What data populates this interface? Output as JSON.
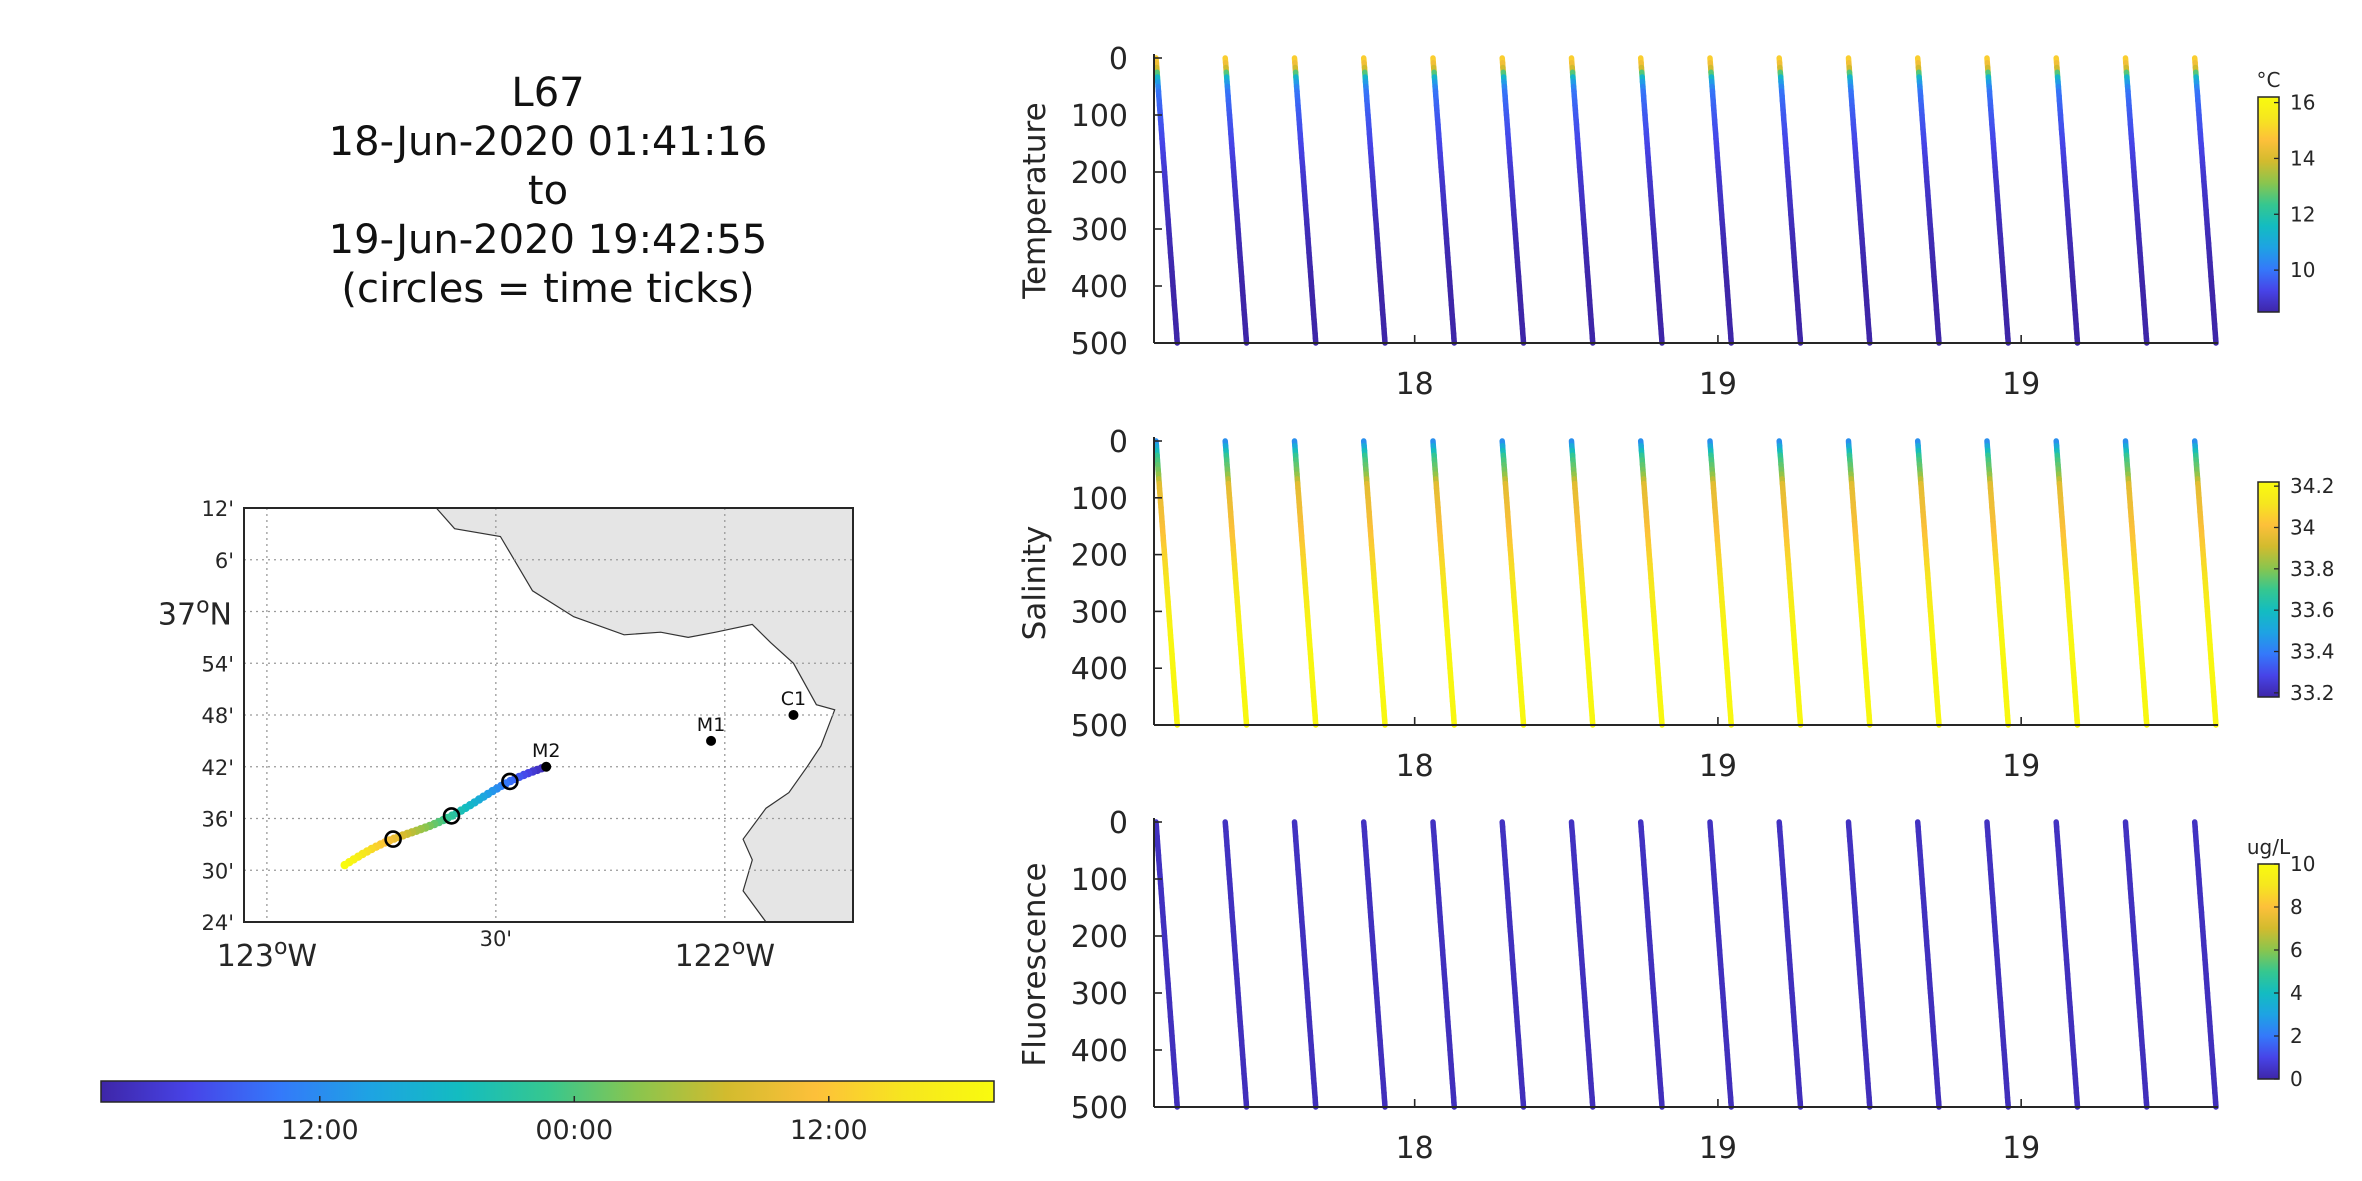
{
  "title": {
    "line1": "L67",
    "line2": "18-Jun-2020 01:41:16",
    "line3": "to",
    "line4": "19-Jun-2020 19:42:55",
    "line5": "(circles = time ticks)"
  },
  "colormap": [
    "#3e26a8",
    "#4744e8",
    "#3479fa",
    "#1ea3e3",
    "#13bcc1",
    "#36c78f",
    "#8ac54e",
    "#d2bb2e",
    "#fdc03a",
    "#f6e61f",
    "#f9fb0e"
  ],
  "time_colorbar": {
    "tick_labels": [
      "12:00",
      "00:00",
      "12:00"
    ],
    "tick_positions": [
      0.245,
      0.53,
      0.815
    ]
  },
  "map": {
    "lon_range": [
      -123.05,
      -121.72
    ],
    "lat_range": [
      36.4,
      37.2
    ],
    "lat_ticks": [
      {
        "v": 37.2,
        "label": "12'"
      },
      {
        "v": 37.1,
        "label": "6'"
      },
      {
        "v": 37.0,
        "label": "37°N"
      },
      {
        "v": 36.9,
        "label": "54'"
      },
      {
        "v": 36.8,
        "label": "48'"
      },
      {
        "v": 36.7,
        "label": "42'"
      },
      {
        "v": 36.6,
        "label": "36'"
      },
      {
        "v": 36.5,
        "label": "30'"
      },
      {
        "v": 36.4,
        "label": "24'"
      }
    ],
    "lon_ticks": [
      {
        "v": -123.0,
        "label": "123°W"
      },
      {
        "v": -122.5,
        "label": "30'"
      },
      {
        "v": -122.0,
        "label": "122°W"
      }
    ],
    "land_color": "#e5e5e5",
    "coast": [
      [
        -122.63,
        37.2
      ],
      [
        -122.59,
        37.16
      ],
      [
        -122.49,
        37.145
      ],
      [
        -122.42,
        37.04
      ],
      [
        -122.33,
        36.99
      ],
      [
        -122.22,
        36.955
      ],
      [
        -122.14,
        36.96
      ],
      [
        -122.08,
        36.95
      ],
      [
        -122.02,
        36.96
      ],
      [
        -121.94,
        36.975
      ],
      [
        -121.9,
        36.94
      ],
      [
        -121.85,
        36.9
      ],
      [
        -121.8,
        36.82
      ],
      [
        -121.76,
        36.81
      ],
      [
        -121.79,
        36.74
      ],
      [
        -121.82,
        36.7
      ],
      [
        -121.86,
        36.65
      ],
      [
        -121.91,
        36.62
      ],
      [
        -121.96,
        36.56
      ],
      [
        -121.94,
        36.52
      ],
      [
        -121.96,
        36.46
      ],
      [
        -121.91,
        36.4
      ]
    ],
    "stations": [
      {
        "name": "M2",
        "lon": -122.39,
        "lat": 36.7
      },
      {
        "name": "M1",
        "lon": -122.03,
        "lat": 36.75
      },
      {
        "name": "C1",
        "lon": -121.85,
        "lat": 36.8
      }
    ],
    "track_start": {
      "lon": -122.39,
      "lat": 36.7
    },
    "track_end": {
      "lon": -122.83,
      "lat": 36.51
    },
    "time_tick_fractions": [
      0.24,
      0.53,
      0.82
    ]
  },
  "chart_data": [
    {
      "type": "scatter",
      "title": "",
      "xlabel": "",
      "ylabel": "Temperature",
      "ylim": [
        500,
        0
      ],
      "yticks": [
        0,
        100,
        200,
        300,
        400,
        500
      ],
      "xtick_labels": [
        {
          "frac": 0.245,
          "label": "18"
        },
        {
          "frac": 0.53,
          "label": "19"
        },
        {
          "frac": 0.815,
          "label": "19"
        }
      ],
      "num_profiles": 16,
      "profile_width_frac": 0.02,
      "series": [
        {
          "name": "",
          "depth": [
            0,
            20,
            40,
            60,
            100,
            200,
            300,
            400,
            500
          ],
          "values": [
            15.2,
            14.0,
            11.0,
            10.0,
            9.6,
            9.0,
            8.7,
            8.5,
            8.5
          ]
        }
      ],
      "colorbar": {
        "label": "°C",
        "ticks": [
          10,
          12,
          14,
          16
        ],
        "range": [
          8.5,
          16.2
        ]
      }
    },
    {
      "type": "scatter",
      "title": "",
      "xlabel": "",
      "ylabel": "Salinity",
      "ylim": [
        500,
        0
      ],
      "yticks": [
        0,
        100,
        200,
        300,
        400,
        500
      ],
      "xtick_labels": [
        {
          "frac": 0.245,
          "label": "18"
        },
        {
          "frac": 0.53,
          "label": "19"
        },
        {
          "frac": 0.815,
          "label": "19"
        }
      ],
      "num_profiles": 16,
      "profile_width_frac": 0.02,
      "series": [
        {
          "name": "",
          "depth": [
            0,
            10,
            30,
            60,
            80,
            150,
            250,
            350,
            500
          ],
          "values": [
            33.4,
            33.5,
            33.7,
            33.8,
            33.95,
            34.0,
            34.12,
            34.2,
            34.2
          ]
        }
      ],
      "colorbar": {
        "label": "",
        "ticks": [
          33.2,
          33.4,
          33.6,
          33.8,
          34,
          34.2
        ],
        "range": [
          33.18,
          34.22
        ]
      }
    },
    {
      "type": "scatter",
      "title": "",
      "xlabel": "",
      "ylabel": "Fluorescence",
      "ylim": [
        500,
        0
      ],
      "yticks": [
        0,
        100,
        200,
        300,
        400,
        500
      ],
      "xtick_labels": [
        {
          "frac": 0.245,
          "label": "18"
        },
        {
          "frac": 0.53,
          "label": "19"
        },
        {
          "frac": 0.815,
          "label": "19"
        }
      ],
      "num_profiles": 16,
      "profile_width_frac": 0.02,
      "series": [
        {
          "name": "",
          "depth": [
            0,
            500
          ],
          "values": [
            0.4,
            0.3
          ]
        }
      ],
      "colorbar": {
        "label": "ug/L",
        "ticks": [
          0,
          2,
          4,
          6,
          8,
          10
        ],
        "range": [
          0,
          10
        ]
      }
    }
  ]
}
